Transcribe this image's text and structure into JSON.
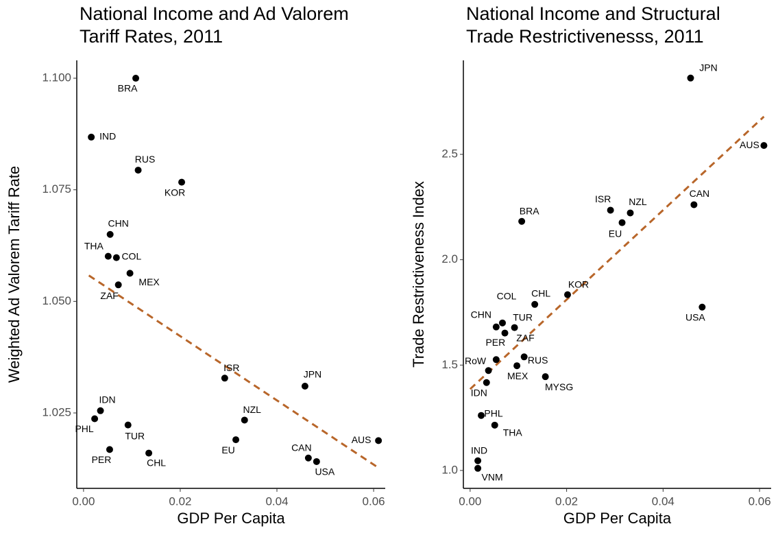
{
  "chart_data": [
    {
      "type": "scatter",
      "title": [
        "National Income and Ad Valorem",
        " Tariff Rates, 2011"
      ],
      "x_label": "GDP Per Capita",
      "y_label": "Weighted Ad Valorem Tariff Rate",
      "color": "#000000",
      "labels": [
        "BRA",
        "IND",
        "RUS",
        "KOR",
        "CHN",
        "THA",
        "COL",
        "MEX",
        "ZAF",
        "ISR",
        "JPN",
        "IDN",
        "PHL",
        "TUR",
        "NZL",
        "EU",
        "AUS",
        "PER",
        "CHL",
        "CAN",
        "USA"
      ],
      "x": [
        0.0108,
        0.0016,
        0.0113,
        0.0203,
        0.0055,
        0.0051,
        0.0068,
        0.0096,
        0.0072,
        0.0292,
        0.0458,
        0.0035,
        0.0023,
        0.0092,
        0.0333,
        0.0315,
        0.061,
        0.0054,
        0.0135,
        0.0465,
        0.0482
      ],
      "values": [
        1.1,
        1.0868,
        1.0794,
        1.0767,
        1.065,
        1.0601,
        1.0598,
        1.0563,
        1.0537,
        1.0328,
        1.031,
        1.0255,
        1.0237,
        1.0223,
        1.0234,
        1.019,
        1.0188,
        1.0168,
        1.016,
        1.0149,
        1.0141
      ],
      "trend": {
        "x": [
          0.0011,
          0.061
        ],
        "values": [
          1.0558,
          1.0127
        ],
        "color": "#b8662a"
      },
      "xlim": [
        -0.0014,
        0.0624
      ],
      "ylim": [
        1.0081,
        1.104
      ],
      "xticks": [
        {
          "value": 0,
          "label": "0.00"
        },
        {
          "value": 0.02,
          "label": "0.02"
        },
        {
          "value": 0.04,
          "label": "0.04"
        },
        {
          "value": 0.06,
          "label": "0.06"
        }
      ],
      "yticks": [
        {
          "value": 1.025,
          "label": "1.025"
        },
        {
          "value": 1.05,
          "label": "1.050"
        },
        {
          "value": 1.075,
          "label": "1.075"
        },
        {
          "value": 1.1,
          "label": "1.100"
        }
      ]
    },
    {
      "type": "scatter",
      "title": [
        "National Income and Structural",
        "Trade Restrictivenesss, 2011"
      ],
      "x_label": "GDP Per Capita",
      "y_label": "Trade Restrictiveness Index",
      "color": "#000000",
      "labels": [
        "JPN",
        "AUS",
        "CAN",
        "ISR",
        "NZL",
        "EU",
        "BRA",
        "KOR",
        "CHL",
        "USA",
        "COL",
        "CHN",
        "TUR",
        "ZAF",
        "PER",
        "RoW",
        "RUS",
        "MEX",
        "MYSG",
        "IDN",
        "PHL",
        "THA",
        "IND",
        "VNM"
      ],
      "x": [
        0.0457,
        0.0609,
        0.0464,
        0.0291,
        0.0332,
        0.0315,
        0.0107,
        0.0202,
        0.0134,
        0.0481,
        0.0067,
        0.0054,
        0.0092,
        0.0072,
        0.0054,
        0.0038,
        0.0112,
        0.0097,
        0.0156,
        0.0034,
        0.0023,
        0.0051,
        0.0016,
        0.0016
      ],
      "values": [
        2.862,
        2.542,
        2.261,
        2.235,
        2.222,
        2.176,
        2.182,
        1.834,
        1.788,
        1.775,
        1.7,
        1.681,
        1.678,
        1.652,
        1.526,
        1.474,
        1.539,
        1.497,
        1.445,
        1.417,
        1.261,
        1.215,
        1.046,
        1.01
      ],
      "trend": {
        "x": [
          0,
          0.0609
        ],
        "values": [
          1.386,
          2.679
        ],
        "color": "#b8662a"
      },
      "xlim": [
        -0.0014,
        0.0624
      ],
      "ylim": [
        0.915,
        2.946
      ],
      "xticks": [
        {
          "value": 0,
          "label": "0.00"
        },
        {
          "value": 0.02,
          "label": "0.02"
        },
        {
          "value": 0.04,
          "label": "0.04"
        },
        {
          "value": 0.06,
          "label": "0.06"
        }
      ],
      "yticks": [
        {
          "value": 1,
          "label": "1.0"
        },
        1.5,
        {
          "value": 2,
          "label": "2.0"
        },
        2.5
      ]
    }
  ]
}
